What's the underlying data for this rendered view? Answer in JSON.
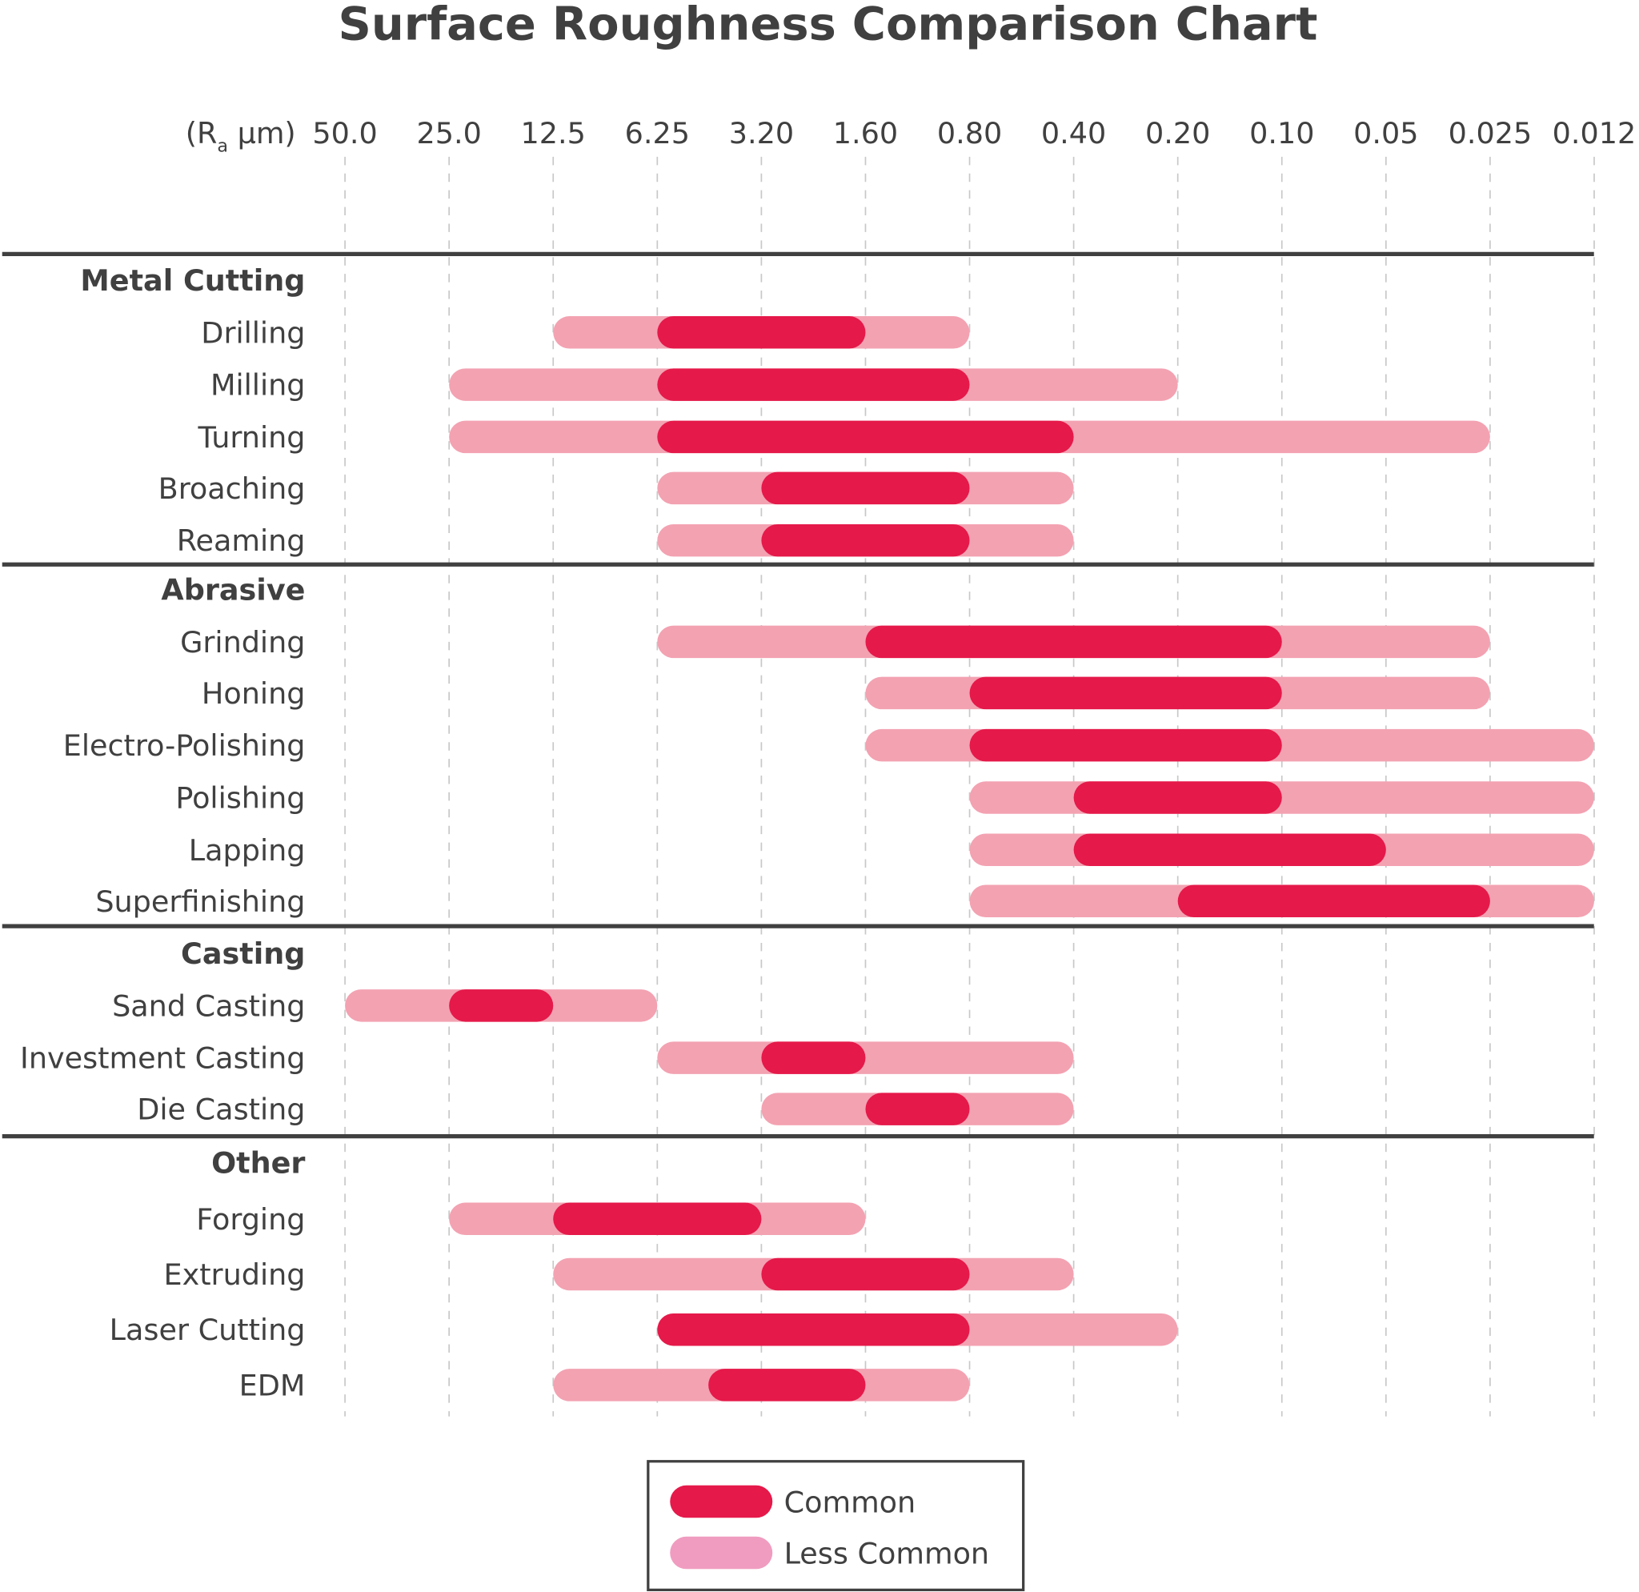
{
  "chart_data": {
    "type": "bar",
    "orientation": "horizontal-range",
    "title": "Surface Roughness Comparison Chart",
    "axis_unit_label": {
      "prefix": "(R",
      "subscript": "a",
      "suffix": " µm)"
    },
    "x_ticks": [
      "50.0",
      "25.0",
      "12.5",
      "6.25",
      "3.20",
      "1.60",
      "0.80",
      "0.40",
      "0.20",
      "0.10",
      "0.05",
      "0.025",
      "0.012"
    ],
    "x_tick_values": [
      50.0,
      25.0,
      12.5,
      6.25,
      3.2,
      1.6,
      0.8,
      0.4,
      0.2,
      0.1,
      0.05,
      0.025,
      0.012
    ],
    "x_scale": "log (decreasing left to right)",
    "grid": "vertical dashed",
    "legend_position": "bottom-center",
    "colors": {
      "common": "#E5194A",
      "less_common": "#F3A2B2",
      "legend_less_common": "#F09CC0",
      "text": "#404040"
    },
    "legend": [
      {
        "label": "Common",
        "key": "common"
      },
      {
        "label": "Less Common",
        "key": "less_common"
      }
    ],
    "groups": [
      {
        "name": "Metal Cutting",
        "processes": [
          {
            "name": "Drilling",
            "less_common": [
              12.5,
              0.8
            ],
            "common": [
              6.25,
              1.6
            ]
          },
          {
            "name": "Milling",
            "less_common": [
              25.0,
              0.2
            ],
            "common": [
              6.25,
              0.8
            ]
          },
          {
            "name": "Turning",
            "less_common": [
              25.0,
              0.025
            ],
            "common": [
              6.25,
              0.4
            ]
          },
          {
            "name": "Broaching",
            "less_common": [
              6.25,
              0.4
            ],
            "common": [
              3.2,
              0.8
            ]
          },
          {
            "name": "Reaming",
            "less_common": [
              6.25,
              0.4
            ],
            "common": [
              3.2,
              0.8
            ]
          }
        ]
      },
      {
        "name": "Abrasive",
        "processes": [
          {
            "name": "Grinding",
            "less_common": [
              6.25,
              0.025
            ],
            "common": [
              1.6,
              0.1
            ]
          },
          {
            "name": "Honing",
            "less_common": [
              1.6,
              0.025
            ],
            "common": [
              0.8,
              0.1
            ]
          },
          {
            "name": "Electro-Polishing",
            "less_common": [
              1.6,
              0.012
            ],
            "common": [
              0.8,
              0.1
            ]
          },
          {
            "name": "Polishing",
            "less_common": [
              0.8,
              0.012
            ],
            "common": [
              0.4,
              0.1
            ]
          },
          {
            "name": "Lapping",
            "less_common": [
              0.8,
              0.012
            ],
            "common": [
              0.4,
              0.05
            ]
          },
          {
            "name": "Superfinishing",
            "less_common": [
              0.8,
              0.012
            ],
            "common": [
              0.2,
              0.025
            ]
          }
        ]
      },
      {
        "name": "Casting",
        "processes": [
          {
            "name": "Sand Casting",
            "less_common": [
              50.0,
              6.25
            ],
            "common": [
              25.0,
              12.5
            ]
          },
          {
            "name": "Investment Casting",
            "less_common": [
              6.25,
              0.4
            ],
            "common": [
              3.2,
              1.6
            ]
          },
          {
            "name": "Die Casting",
            "less_common": [
              3.2,
              0.4
            ],
            "common": [
              1.6,
              0.8
            ]
          }
        ]
      },
      {
        "name": "Other",
        "processes": [
          {
            "name": "Forging",
            "less_common": [
              25.0,
              1.6
            ],
            "common": [
              12.5,
              3.2
            ]
          },
          {
            "name": "Extruding",
            "less_common": [
              12.5,
              0.4
            ],
            "common": [
              3.2,
              0.8
            ]
          },
          {
            "name": "Laser Cutting",
            "less_common": [
              6.25,
              0.2
            ],
            "common": [
              6.25,
              0.8
            ]
          },
          {
            "name": "EDM",
            "less_common": [
              12.5,
              0.8
            ],
            "common": [
              4.5,
              1.6
            ]
          }
        ]
      }
    ]
  }
}
